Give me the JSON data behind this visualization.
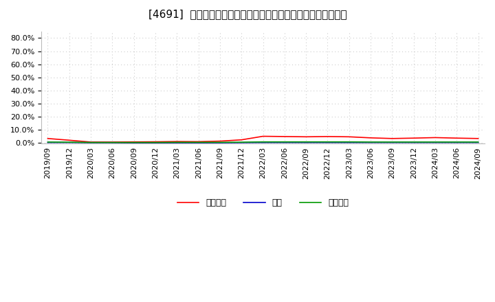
{
  "title": "[4691]  売上債権、在庫、買入債務の総資産に対する比率の推移",
  "x_labels": [
    "2019/09",
    "2019/12",
    "2020/03",
    "2020/06",
    "2020/09",
    "2020/12",
    "2021/03",
    "2021/06",
    "2021/09",
    "2021/12",
    "2022/03",
    "2022/06",
    "2022/09",
    "2022/12",
    "2023/03",
    "2023/06",
    "2023/09",
    "2023/12",
    "2024/03",
    "2024/06",
    "2024/09"
  ],
  "receivables": [
    3.5,
    2.2,
    0.8,
    0.8,
    0.9,
    1.0,
    1.2,
    1.1,
    1.5,
    2.5,
    5.2,
    5.0,
    4.8,
    5.0,
    4.8,
    4.0,
    3.5,
    3.8,
    4.2,
    3.8,
    3.5
  ],
  "inventory": [
    0.5,
    0.5,
    0.4,
    0.4,
    0.3,
    0.3,
    0.3,
    0.3,
    0.3,
    0.4,
    0.5,
    0.5,
    0.5,
    0.5,
    0.5,
    0.5,
    0.5,
    0.5,
    0.5,
    0.5,
    0.5
  ],
  "payables": [
    0.8,
    0.7,
    0.5,
    0.5,
    0.5,
    0.5,
    0.6,
    0.6,
    0.6,
    0.7,
    0.9,
    0.9,
    0.9,
    0.9,
    0.9,
    0.8,
    0.8,
    0.8,
    0.8,
    0.8,
    0.8
  ],
  "receivables_color": "#ff0000",
  "inventory_color": "#0000cc",
  "payables_color": "#009900",
  "legend_labels": [
    "売上債権",
    "在庫",
    "買入債務"
  ],
  "ytick_vals": [
    0.0,
    10.0,
    20.0,
    30.0,
    40.0,
    50.0,
    60.0,
    70.0,
    80.0
  ],
  "background_color": "#ffffff",
  "plot_bg_color": "#ffffff",
  "grid_color": "#cccccc",
  "title_fontsize": 11,
  "tick_fontsize": 8,
  "legend_fontsize": 9
}
